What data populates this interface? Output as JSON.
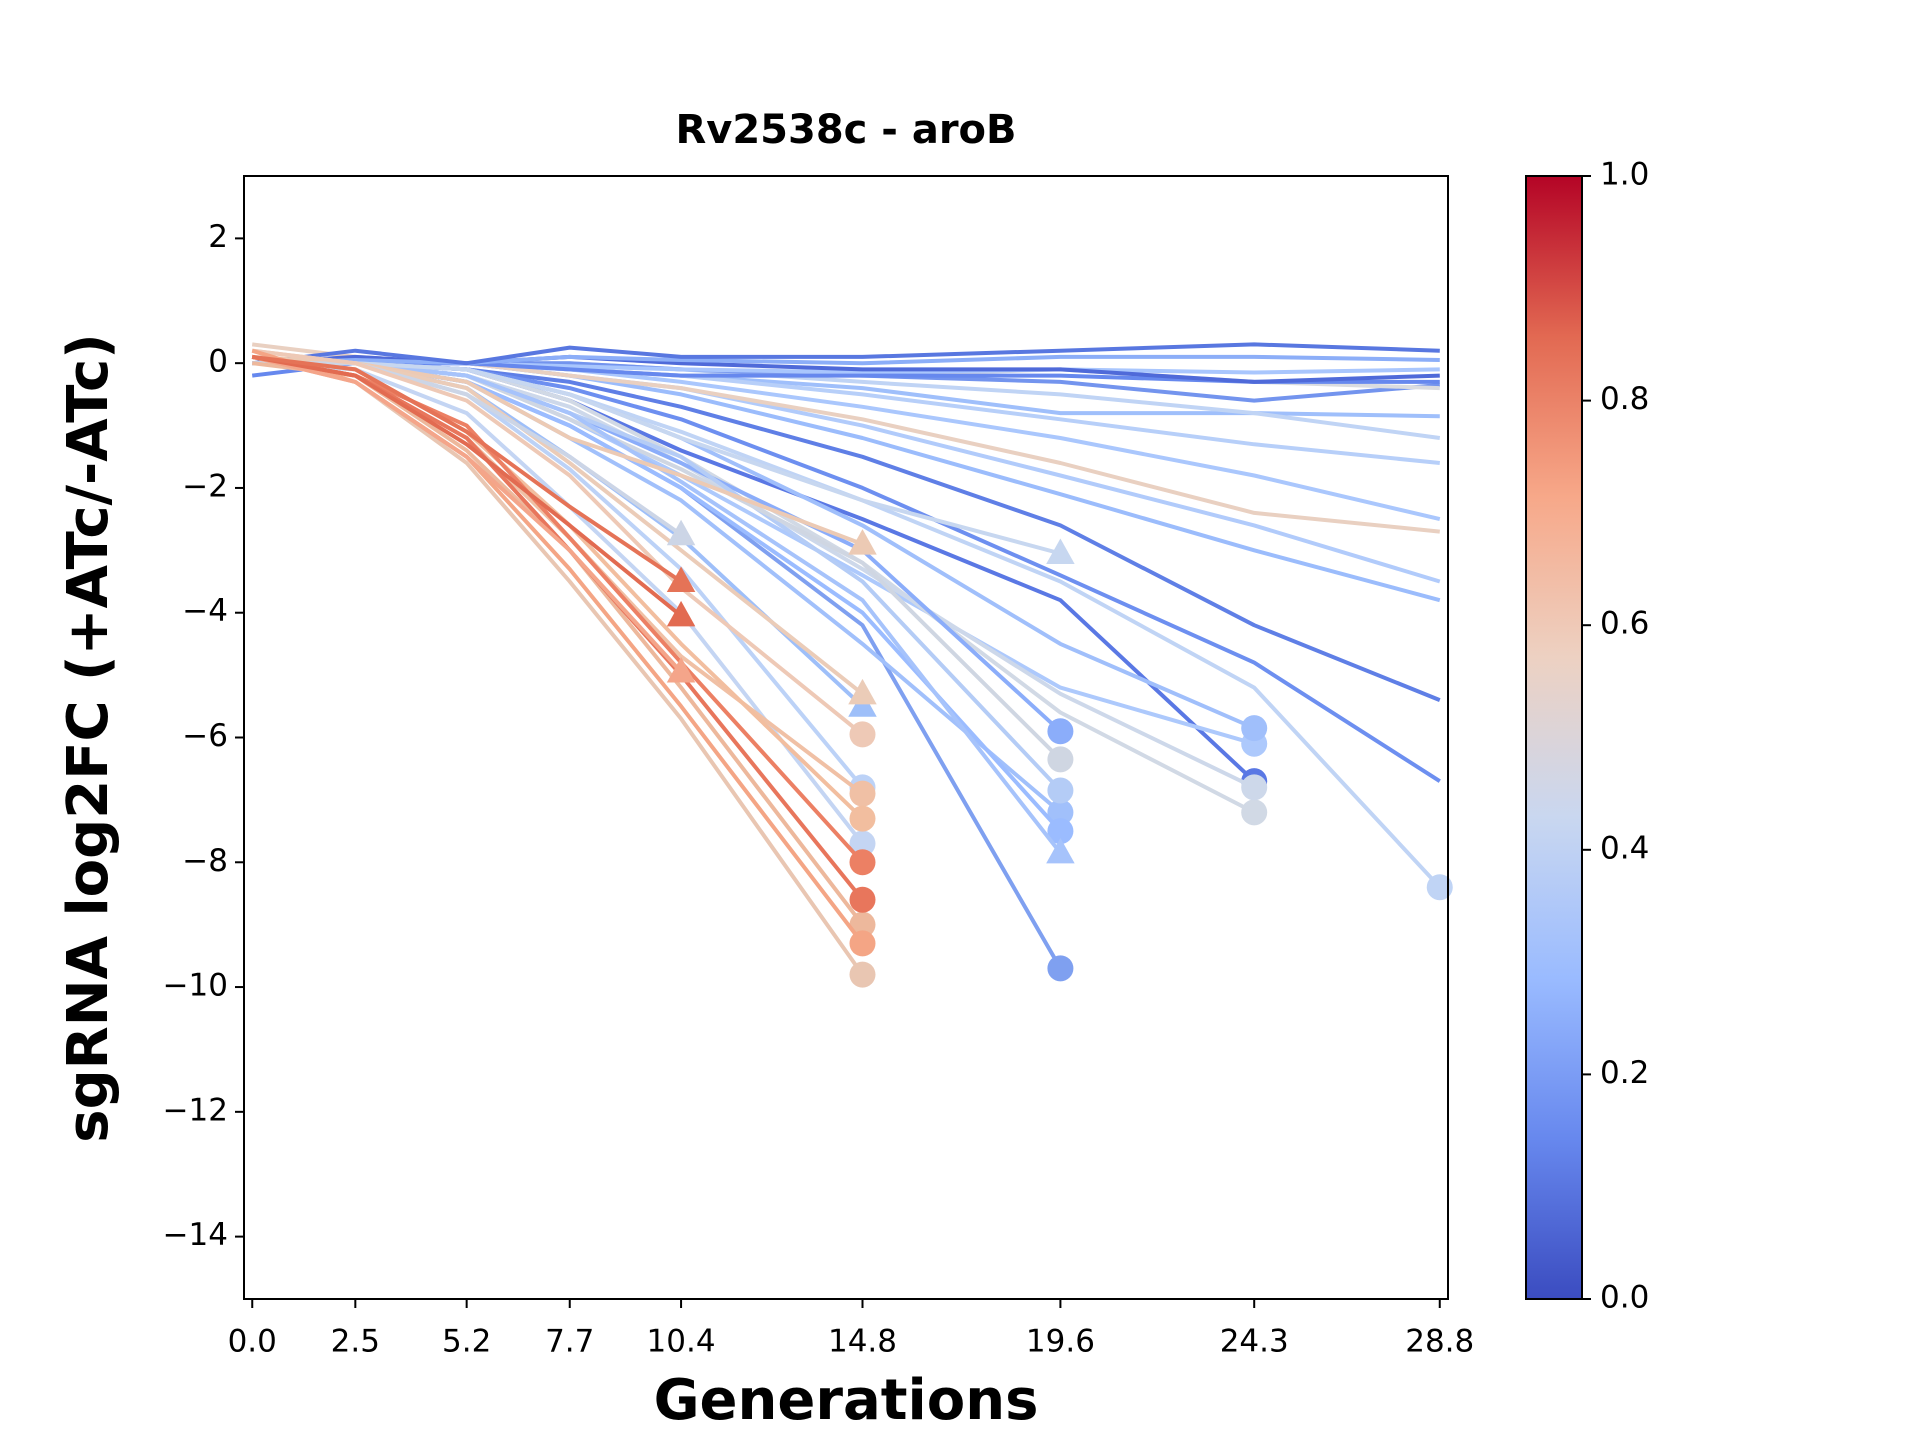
{
  "chart_data": {
    "type": "line",
    "title": "Rv2538c - aroB",
    "xlabel": "Generations",
    "ylabel": "sgRNA log2FC (+ATc/-ATc)",
    "x": [
      0,
      2.5,
      5.2,
      7.7,
      10.4,
      14.8,
      19.6,
      24.3,
      28.8
    ],
    "xlim": [
      -0.2,
      29.0
    ],
    "ylim": [
      -15,
      3
    ],
    "xticks": [
      {
        "value": 0,
        "label": "0.0"
      },
      2.5,
      5.2,
      7.7,
      10.4,
      14.8,
      19.6,
      24.3,
      28.8
    ],
    "yticks": [
      {
        "value": -14,
        "label": "−14"
      },
      {
        "value": -12,
        "label": "−12"
      },
      {
        "value": -10,
        "label": "−10"
      },
      {
        "value": -8,
        "label": "−8"
      },
      {
        "value": -6,
        "label": "−6"
      },
      {
        "value": -4,
        "label": "−4"
      },
      {
        "value": -2,
        "label": "−2"
      },
      0,
      2
    ],
    "grid": false,
    "colorbar": {
      "lim": [
        0,
        1
      ],
      "ticks": [
        {
          "value": 0,
          "label": "0.0"
        },
        0.2,
        0.4,
        0.6,
        0.8,
        {
          "value": 1,
          "label": "1.0"
        }
      ],
      "colors": [
        "#3b4cc0",
        "#6788ee",
        "#9abbff",
        "#c9d7f0",
        "#edd1c2",
        "#f7a889",
        "#e26952",
        "#b40426"
      ]
    },
    "series": [
      {
        "color": "#9fbffb",
        "marker": null,
        "values": [
          0,
          0,
          0,
          -0.1,
          -0.2,
          -0.4,
          -0.8,
          -0.8,
          -0.85
        ]
      },
      {
        "color": "#b7cff9",
        "marker": null,
        "values": [
          0,
          0,
          0,
          -0.1,
          -0.2,
          -0.5,
          -0.9,
          -1.3,
          -1.6
        ]
      },
      {
        "color": "#c0d4f5",
        "marker": null,
        "values": [
          0,
          0,
          0,
          0,
          -0.1,
          -0.3,
          -0.5,
          -0.8,
          -1.2
        ]
      },
      {
        "color": "#aac7fd",
        "marker": null,
        "values": [
          0,
          0,
          0,
          -0.1,
          -0.3,
          -0.7,
          -1.2,
          -1.8,
          -2.5
        ]
      },
      {
        "color": "#b1cbfb",
        "marker": null,
        "values": [
          0,
          0,
          0,
          -0.2,
          -0.4,
          -1.0,
          -1.8,
          -2.6,
          -3.5
        ]
      },
      {
        "color": "#9bbcfc",
        "marker": null,
        "values": [
          0,
          0,
          0,
          -0.2,
          -0.5,
          -1.2,
          -2.1,
          -3.0,
          -3.8
        ]
      },
      {
        "color": "#5f7fe6",
        "marker": null,
        "values": [
          0,
          0,
          -0.1,
          -0.3,
          -0.7,
          -1.5,
          -2.6,
          -4.2,
          -5.4
        ]
      },
      {
        "color": "#6d8ff0",
        "marker": null,
        "values": [
          0,
          0,
          -0.1,
          -0.4,
          -0.9,
          -2.0,
          -3.4,
          -4.8,
          -6.7
        ]
      },
      {
        "color": "#c0d4f5",
        "marker": "o",
        "values": [
          0,
          0,
          -0.1,
          -0.5,
          -1.1,
          -2.2,
          -3.5,
          -5.2,
          -8.4
        ]
      },
      {
        "color": "#e9d0c1",
        "marker": null,
        "values": [
          0.3,
          0.1,
          0,
          -0.2,
          -0.4,
          -0.9,
          -1.6,
          -2.4,
          -2.7
        ]
      },
      {
        "color": "#7394ee",
        "marker": null,
        "values": [
          0,
          0,
          0,
          0,
          -0.1,
          -0.2,
          -0.3,
          -0.6,
          -0.35
        ]
      },
      {
        "color": "#dadce0",
        "marker": null,
        "values": [
          0,
          0,
          0,
          -0.1,
          -0.2,
          -0.2,
          -0.1,
          -0.3,
          -0.4
        ]
      },
      {
        "color": "#a9c6fd",
        "marker": null,
        "values": [
          0,
          0,
          0,
          -0.05,
          -0.1,
          -0.15,
          -0.1,
          -0.15,
          -0.1
        ]
      },
      {
        "color": "#6688ee",
        "marker": null,
        "values": [
          -0.2,
          0,
          0,
          -0.1,
          -0.2,
          -0.2,
          -0.2,
          -0.3,
          -0.3
        ]
      },
      {
        "color": "#4f6ad9",
        "marker": null,
        "values": [
          0,
          0.1,
          0,
          0.1,
          0,
          -0.1,
          -0.1,
          -0.3,
          -0.2
        ]
      },
      {
        "color": "#8caef8",
        "marker": null,
        "values": [
          0,
          0.05,
          0,
          0.1,
          0.05,
          0,
          0.1,
          0.1,
          0.05
        ]
      },
      {
        "color": "#5877e0",
        "marker": null,
        "values": [
          0,
          0.2,
          0,
          0.25,
          0.1,
          0.1,
          0.2,
          0.3,
          0.2
        ]
      },
      {
        "color": "#5a78e4",
        "marker": "o",
        "values": [
          0,
          0,
          -0.1,
          -0.6,
          -1.4,
          -2.5,
          -3.8,
          -6.7,
          null
        ]
      },
      {
        "color": "#adc9fc",
        "marker": "o",
        "values": [
          0,
          0,
          -0.2,
          -0.9,
          -1.8,
          -3.4,
          -5.2,
          -6.1,
          null
        ]
      },
      {
        "color": "#d1d9e5",
        "marker": "o",
        "values": [
          0,
          0,
          -0.1,
          -0.6,
          -1.5,
          -3.2,
          -5.6,
          -7.2,
          null
        ]
      },
      {
        "color": "#a0bffb",
        "marker": "o",
        "values": [
          0,
          0,
          -0.1,
          -0.5,
          -1.2,
          -2.6,
          -4.5,
          -5.85,
          null
        ]
      },
      {
        "color": "#cdd8ea",
        "marker": "o",
        "values": [
          0,
          0,
          -0.2,
          -0.7,
          -1.6,
          -3.3,
          -5.3,
          -6.8,
          null
        ]
      },
      {
        "color": "#7fa0f0",
        "marker": "o",
        "values": [
          0,
          0,
          -0.3,
          -1.0,
          -2.0,
          -4.2,
          -9.7,
          null,
          null
        ]
      },
      {
        "color": "#8badfa",
        "marker": "o",
        "values": [
          0,
          0,
          -0.2,
          -0.8,
          -1.6,
          -3.0,
          -5.9,
          null,
          null
        ]
      },
      {
        "color": "#a1c0fb",
        "marker": "o",
        "values": [
          0,
          0,
          -0.3,
          -1.2,
          -2.2,
          -4.5,
          -7.2,
          null,
          null
        ]
      },
      {
        "color": "#b4ccf6",
        "marker": "o",
        "values": [
          0,
          0,
          -0.2,
          -0.8,
          -1.5,
          -3.5,
          -6.85,
          null,
          null
        ]
      },
      {
        "color": "#cfd6e2",
        "marker": "o",
        "values": [
          0,
          0,
          -0.2,
          -0.9,
          -1.7,
          -3.2,
          -6.35,
          null,
          null
        ]
      },
      {
        "color": "#9bbcff",
        "marker": "o",
        "values": [
          0,
          0,
          -0.3,
          -1.0,
          -2.0,
          -4.0,
          -7.5,
          null,
          null
        ]
      },
      {
        "color": "#a6c3fb",
        "marker": "^",
        "values": [
          0,
          0,
          -0.2,
          -0.8,
          -1.9,
          -3.8,
          -7.85,
          null,
          null
        ]
      },
      {
        "color": "#c7d7f0",
        "marker": "^",
        "values": [
          0,
          0,
          -0.1,
          -0.5,
          -1.2,
          -2.2,
          -3.05,
          null,
          null
        ]
      },
      {
        "color": "#bcd2f7",
        "marker": "o",
        "values": [
          0,
          0,
          -0.5,
          -1.7,
          -3.3,
          -6.8,
          null,
          null,
          null
        ]
      },
      {
        "color": "#c4d5f3",
        "marker": "o",
        "values": [
          0,
          -0.1,
          -0.8,
          -2.3,
          -4.0,
          -7.7,
          null,
          null,
          null
        ]
      },
      {
        "color": "#9ebff9",
        "marker": "^",
        "values": [
          0,
          0,
          -0.4,
          -1.5,
          -2.8,
          -5.5,
          null,
          null,
          null
        ]
      },
      {
        "color": "#eccab4",
        "marker": "^",
        "values": [
          0.1,
          0,
          -0.3,
          -1.2,
          -1.8,
          -2.9,
          null,
          null,
          null
        ]
      },
      {
        "color": "#ebccb8",
        "marker": "^",
        "values": [
          0.2,
          0,
          -0.4,
          -1.6,
          -3.0,
          -5.3,
          null,
          null,
          null
        ]
      },
      {
        "color": "#ccd5e6",
        "marker": "^",
        "values": [
          0,
          0,
          -0.5,
          -1.5,
          -2.75,
          null,
          null,
          null,
          null
        ]
      },
      {
        "color": "#eec9b6",
        "marker": "o",
        "values": [
          0.2,
          0,
          -0.6,
          -1.8,
          -3.6,
          -5.95,
          null,
          null,
          null
        ]
      },
      {
        "color": "#f0c0a5",
        "marker": "o",
        "values": [
          0.1,
          -0.2,
          -1.2,
          -2.8,
          -4.7,
          -6.9,
          null,
          null,
          null
        ]
      },
      {
        "color": "#f2be9f",
        "marker": "o",
        "values": [
          0.1,
          -0.1,
          -1.1,
          -2.6,
          -4.5,
          -7.3,
          null,
          null,
          null
        ]
      },
      {
        "color": "#edb89c",
        "marker": "o",
        "values": [
          0,
          -0.2,
          -1.4,
          -3.0,
          -5.2,
          -9.0,
          null,
          null,
          null
        ]
      },
      {
        "color": "#e9c6b2",
        "marker": "o",
        "values": [
          0.1,
          -0.3,
          -1.6,
          -3.5,
          -5.7,
          -9.8,
          null,
          null,
          null
        ]
      },
      {
        "color": "#f4a585",
        "marker": "o",
        "values": [
          0.2,
          -0.3,
          -1.5,
          -3.3,
          -5.5,
          -9.3,
          null,
          null,
          null
        ]
      },
      {
        "color": "#ec8064",
        "marker": "o",
        "values": [
          0.1,
          -0.2,
          -1.0,
          -2.8,
          -4.8,
          -8.0,
          null,
          null,
          null
        ]
      },
      {
        "color": "#e8765c",
        "marker": "o",
        "values": [
          0.1,
          -0.2,
          -1.2,
          -3.0,
          -5.0,
          -8.6,
          null,
          null,
          null
        ]
      },
      {
        "color": "#f4a58a",
        "marker": "^",
        "values": [
          0.1,
          -0.3,
          -1.5,
          -3.0,
          -4.95,
          null,
          null,
          null,
          null
        ]
      },
      {
        "color": "#e26b51",
        "marker": "^",
        "values": [
          0.1,
          -0.2,
          -1.3,
          -2.6,
          -4.05,
          null,
          null,
          null,
          null
        ]
      },
      {
        "color": "#e57357",
        "marker": "^",
        "values": [
          0.1,
          -0.1,
          -1.1,
          -2.3,
          -3.5,
          null,
          null,
          null,
          null
        ]
      }
    ]
  }
}
